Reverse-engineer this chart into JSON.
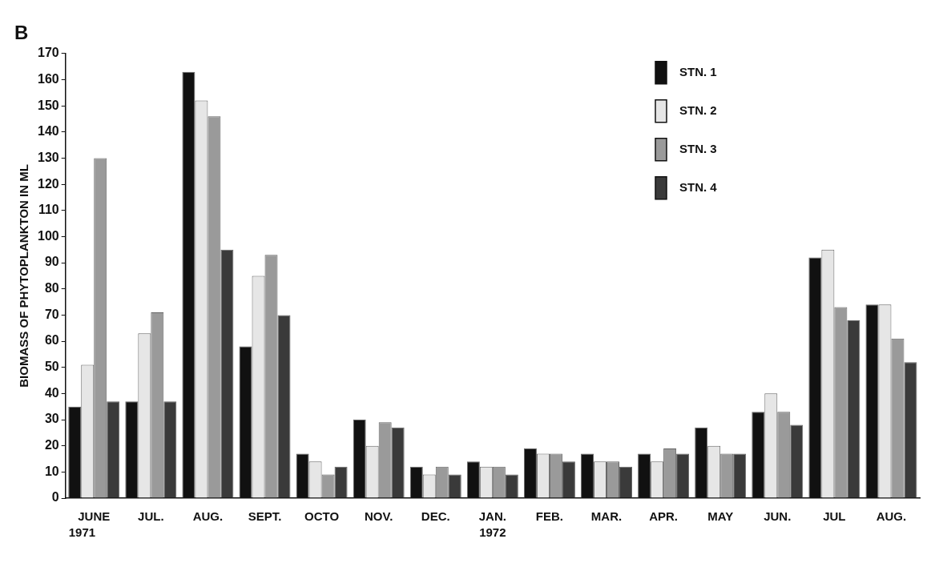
{
  "chart_data": {
    "type": "bar",
    "title": "B",
    "ylabel": "BIOMASS OF PHYTOPLANKTON IN ML",
    "categories": [
      "JUNE",
      "JUL.",
      "AUG.",
      "SEPT.",
      "OCTO",
      "NOV.",
      "DEC.",
      "JAN.",
      "FEB.",
      "MAR.",
      "APR.",
      "MAY",
      "JUN.",
      "JUL",
      "AUG."
    ],
    "series": [
      {
        "name": "STN. 1",
        "color": "#111111",
        "values": [
          35,
          37,
          163,
          58,
          17,
          30,
          12,
          14,
          19,
          17,
          17,
          27,
          33,
          92,
          74
        ]
      },
      {
        "name": "STN. 2",
        "color": "#e6e6e6",
        "values": [
          51,
          63,
          152,
          85,
          14,
          20,
          9,
          12,
          17,
          14,
          14,
          20,
          40,
          95,
          74
        ]
      },
      {
        "name": "STN. 3",
        "color": "#9a9a9a",
        "values": [
          130,
          71,
          146,
          93,
          9,
          29,
          12,
          12,
          17,
          14,
          19,
          17,
          33,
          73,
          61
        ]
      },
      {
        "name": "STN. 4",
        "color": "#3a3a3a",
        "values": [
          37,
          37,
          95,
          70,
          12,
          27,
          9,
          9,
          14,
          12,
          17,
          17,
          28,
          68,
          52
        ]
      }
    ],
    "ylim": [
      0,
      170
    ],
    "yticks": [
      0,
      10,
      20,
      30,
      40,
      50,
      60,
      70,
      80,
      90,
      100,
      110,
      120,
      130,
      140,
      150,
      160,
      170
    ],
    "grid": false,
    "legend": "top right",
    "annotations": [
      "1971",
      "1972"
    ]
  }
}
